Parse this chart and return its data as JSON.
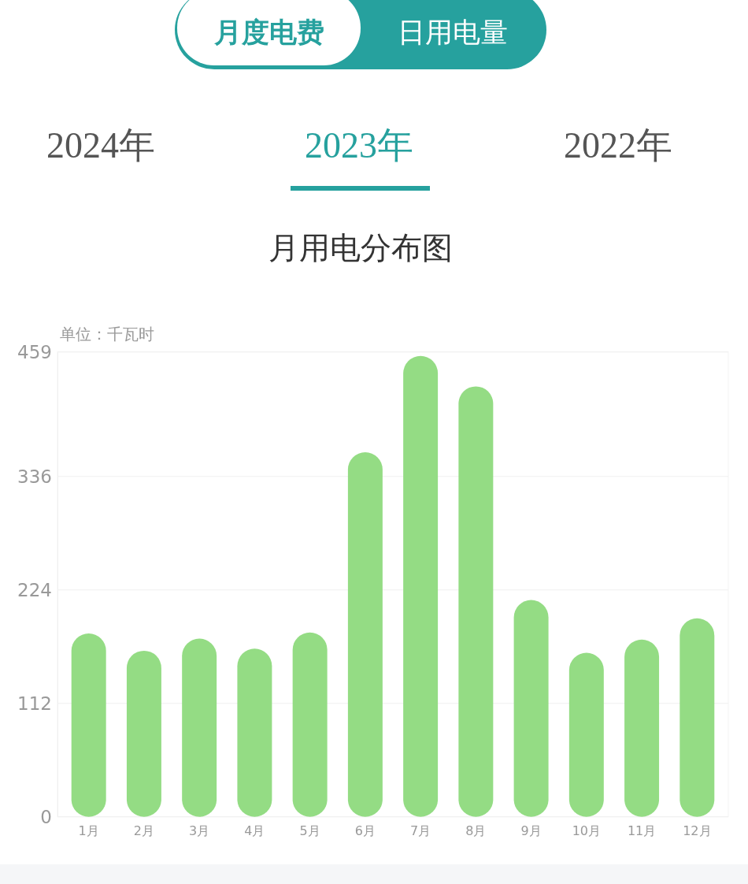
{
  "chart_data": {
    "type": "bar",
    "title": "月用电分布图",
    "ylabel": "单位：千瓦时",
    "annotations": [
      "月度电费",
      "日用电量",
      "2024年",
      "2023年",
      "2022年"
    ],
    "categories": [
      "1月",
      "2月",
      "3月",
      "4月",
      "5月",
      "6月",
      "7月",
      "8月",
      "9月",
      "10月",
      "11月",
      "12月"
    ],
    "values": [
      181,
      164,
      176,
      166,
      182,
      360,
      455,
      425,
      214,
      162,
      175,
      196
    ],
    "color": "#94dc84",
    "ylim": [
      0,
      459
    ],
    "yticks": [
      0,
      112,
      224,
      336,
      459
    ],
    "grid": true
  }
}
